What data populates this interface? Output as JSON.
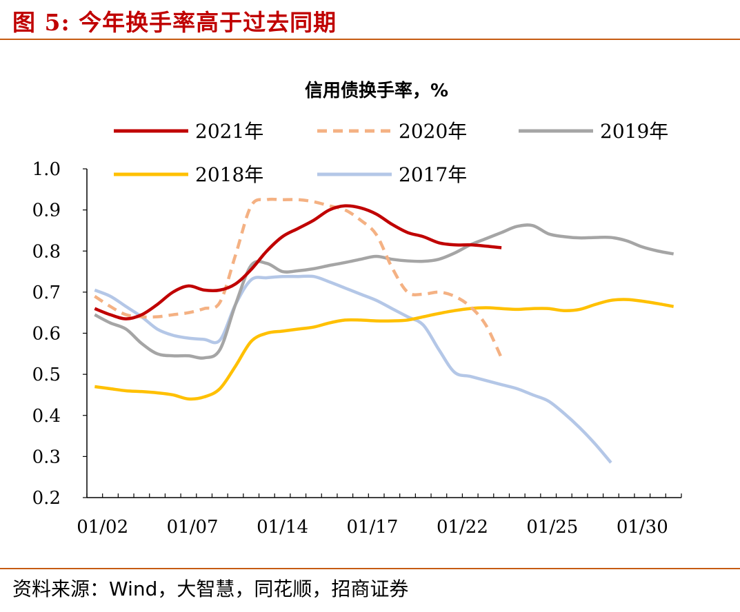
{
  "header": {
    "figure_title": "图  5:  今年换手率高于过去同期"
  },
  "footer": {
    "source": "资料来源：Wind，大智慧，同花顺，招商证券"
  },
  "colors": {
    "accent": "#c00000",
    "rule": "#c55a11"
  },
  "chart_data": {
    "type": "line",
    "title": "信用债换手率，%",
    "xlabel": "",
    "ylabel": "",
    "ylim": [
      0.2,
      1.0
    ],
    "yticks": [
      "1.0",
      "0.9",
      "0.8",
      "0.7",
      "0.6",
      "0.5",
      "0.4",
      "0.3",
      "0.2"
    ],
    "xticks": [
      "01/02",
      "01/07",
      "01/14",
      "01/17",
      "01/22",
      "01/25",
      "01/30"
    ],
    "grid": false,
    "legend_position": "top",
    "series": [
      {
        "name": "2021年",
        "color": "#c00000",
        "dash": "solid",
        "points": [
          [
            0,
            0.66
          ],
          [
            1,
            0.645
          ],
          [
            2,
            0.635
          ],
          [
            3,
            0.645
          ],
          [
            4,
            0.67
          ],
          [
            5,
            0.7
          ],
          [
            6,
            0.715
          ],
          [
            7,
            0.705
          ],
          [
            8,
            0.705
          ],
          [
            9,
            0.72
          ],
          [
            10,
            0.755
          ],
          [
            11,
            0.8
          ],
          [
            12,
            0.835
          ],
          [
            13,
            0.855
          ],
          [
            14,
            0.875
          ],
          [
            15,
            0.9
          ],
          [
            16,
            0.91
          ],
          [
            17,
            0.905
          ],
          [
            18,
            0.89
          ],
          [
            19,
            0.865
          ],
          [
            20,
            0.845
          ],
          [
            21,
            0.835
          ],
          [
            22,
            0.82
          ],
          [
            23,
            0.815
          ],
          [
            24,
            0.815
          ],
          [
            25,
            0.812
          ],
          [
            26,
            0.808
          ]
        ]
      },
      {
        "name": "2020年",
        "color": "#f4b183",
        "dash": "dashed",
        "points": [
          [
            0,
            0.69
          ],
          [
            1,
            0.665
          ],
          [
            2,
            0.645
          ],
          [
            3,
            0.64
          ],
          [
            4,
            0.64
          ],
          [
            5,
            0.645
          ],
          [
            6,
            0.65
          ],
          [
            7,
            0.66
          ],
          [
            8,
            0.675
          ],
          [
            9,
            0.79
          ],
          [
            10,
            0.91
          ],
          [
            11,
            0.925
          ],
          [
            12,
            0.925
          ],
          [
            13,
            0.925
          ],
          [
            14,
            0.92
          ],
          [
            15,
            0.91
          ],
          [
            16,
            0.9
          ],
          [
            17,
            0.875
          ],
          [
            18,
            0.84
          ],
          [
            19,
            0.76
          ],
          [
            20,
            0.7
          ],
          [
            21,
            0.695
          ],
          [
            22,
            0.7
          ],
          [
            23,
            0.69
          ],
          [
            24,
            0.665
          ],
          [
            25,
            0.62
          ],
          [
            26,
            0.54
          ]
        ]
      },
      {
        "name": "2019年",
        "color": "#a5a5a5",
        "dash": "solid",
        "points": [
          [
            0,
            0.645
          ],
          [
            1,
            0.625
          ],
          [
            2,
            0.61
          ],
          [
            3,
            0.575
          ],
          [
            4,
            0.55
          ],
          [
            5,
            0.545
          ],
          [
            6,
            0.545
          ],
          [
            7,
            0.54
          ],
          [
            8,
            0.56
          ],
          [
            9,
            0.67
          ],
          [
            10,
            0.765
          ],
          [
            11,
            0.77
          ],
          [
            12,
            0.75
          ],
          [
            13,
            0.752
          ],
          [
            14,
            0.757
          ],
          [
            15,
            0.765
          ],
          [
            16,
            0.772
          ],
          [
            17,
            0.78
          ],
          [
            18,
            0.787
          ],
          [
            19,
            0.78
          ],
          [
            20,
            0.776
          ],
          [
            21,
            0.775
          ],
          [
            22,
            0.78
          ],
          [
            23,
            0.795
          ],
          [
            24,
            0.815
          ],
          [
            25,
            0.83
          ],
          [
            26,
            0.845
          ],
          [
            27,
            0.86
          ],
          [
            28,
            0.862
          ],
          [
            29,
            0.842
          ],
          [
            30,
            0.835
          ],
          [
            31,
            0.832
          ],
          [
            32,
            0.833
          ],
          [
            33,
            0.833
          ],
          [
            34,
            0.825
          ],
          [
            35,
            0.81
          ],
          [
            36,
            0.8
          ],
          [
            37,
            0.793
          ]
        ]
      },
      {
        "name": "2018年",
        "color": "#ffc000",
        "dash": "solid",
        "points": [
          [
            0,
            0.47
          ],
          [
            1,
            0.465
          ],
          [
            2,
            0.46
          ],
          [
            3,
            0.458
          ],
          [
            4,
            0.455
          ],
          [
            5,
            0.45
          ],
          [
            6,
            0.44
          ],
          [
            7,
            0.445
          ],
          [
            8,
            0.465
          ],
          [
            9,
            0.52
          ],
          [
            10,
            0.58
          ],
          [
            11,
            0.6
          ],
          [
            12,
            0.605
          ],
          [
            13,
            0.61
          ],
          [
            14,
            0.615
          ],
          [
            15,
            0.625
          ],
          [
            16,
            0.632
          ],
          [
            17,
            0.632
          ],
          [
            18,
            0.63
          ],
          [
            19,
            0.63
          ],
          [
            20,
            0.632
          ],
          [
            21,
            0.64
          ],
          [
            22,
            0.648
          ],
          [
            23,
            0.655
          ],
          [
            24,
            0.66
          ],
          [
            25,
            0.662
          ],
          [
            26,
            0.66
          ],
          [
            27,
            0.658
          ],
          [
            28,
            0.66
          ],
          [
            29,
            0.66
          ],
          [
            30,
            0.655
          ],
          [
            31,
            0.658
          ],
          [
            32,
            0.67
          ],
          [
            33,
            0.68
          ],
          [
            34,
            0.682
          ],
          [
            35,
            0.678
          ],
          [
            36,
            0.672
          ],
          [
            37,
            0.665
          ]
        ]
      },
      {
        "name": "2017年",
        "color": "#b4c7e7",
        "dash": "solid",
        "points": [
          [
            0,
            0.705
          ],
          [
            1,
            0.69
          ],
          [
            2,
            0.665
          ],
          [
            3,
            0.64
          ],
          [
            4,
            0.61
          ],
          [
            5,
            0.595
          ],
          [
            6,
            0.588
          ],
          [
            7,
            0.585
          ],
          [
            8,
            0.583
          ],
          [
            9,
            0.67
          ],
          [
            10,
            0.73
          ],
          [
            11,
            0.735
          ],
          [
            12,
            0.738
          ],
          [
            13,
            0.738
          ],
          [
            14,
            0.738
          ],
          [
            15,
            0.725
          ],
          [
            16,
            0.71
          ],
          [
            17,
            0.695
          ],
          [
            18,
            0.68
          ],
          [
            19,
            0.66
          ],
          [
            20,
            0.64
          ],
          [
            21,
            0.62
          ],
          [
            22,
            0.56
          ],
          [
            23,
            0.505
          ],
          [
            24,
            0.495
          ],
          [
            25,
            0.485
          ],
          [
            26,
            0.475
          ],
          [
            27,
            0.465
          ],
          [
            28,
            0.45
          ],
          [
            29,
            0.435
          ],
          [
            30,
            0.405
          ],
          [
            31,
            0.37
          ],
          [
            32,
            0.33
          ],
          [
            33,
            0.285
          ]
        ]
      }
    ]
  }
}
